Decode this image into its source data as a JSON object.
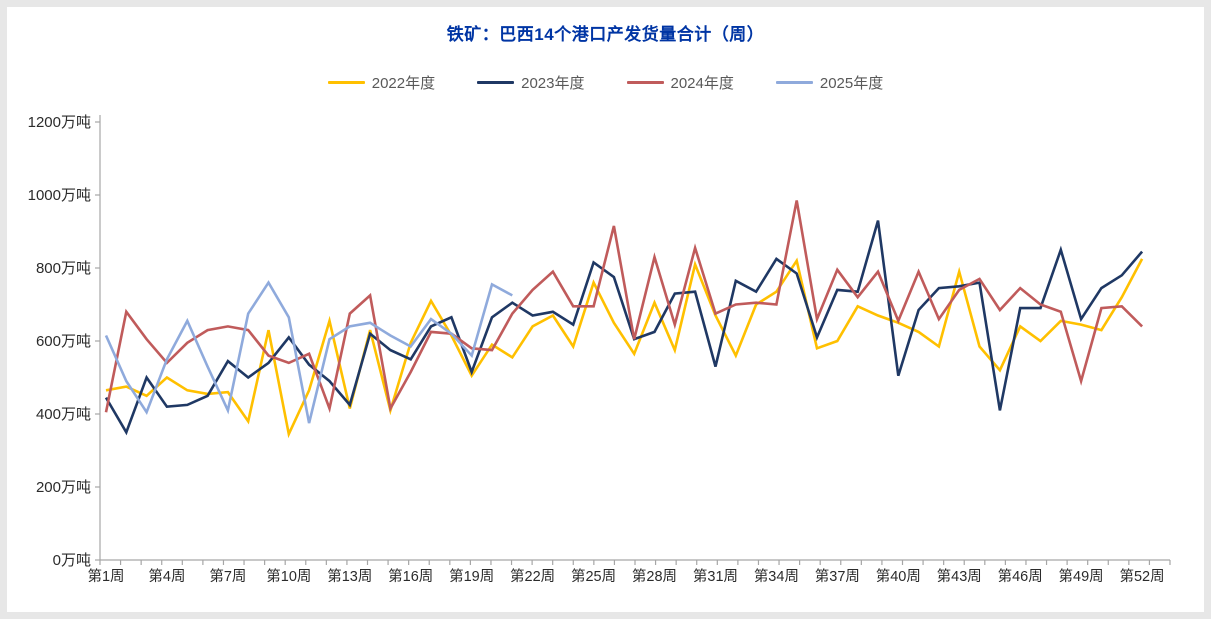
{
  "title": "铁矿：巴西14个港口产发货量合计（周）",
  "legend": [
    {
      "label": "2022年度",
      "color": "#FFC000"
    },
    {
      "label": "2023年度",
      "color": "#1F3864"
    },
    {
      "label": "2024年度",
      "color": "#C05B5B"
    },
    {
      "label": "2025年度",
      "color": "#8FAADC"
    }
  ],
  "axes": {
    "y_unit": "万吨",
    "y_tick_labels": [
      "0万吨",
      "200万吨",
      "400万吨",
      "600万吨",
      "800万吨",
      "1000万吨",
      "1200万吨"
    ],
    "y_tick_values": [
      0,
      200,
      400,
      600,
      800,
      1000,
      1200
    ],
    "x_tick_labels": [
      "第1周",
      "第4周",
      "第7周",
      "第10周",
      "第13周",
      "第16周",
      "第19周",
      "第22周",
      "第25周",
      "第28周",
      "第31周",
      "第34周",
      "第37周",
      "第40周",
      "第43周",
      "第46周",
      "第49周",
      "第52周"
    ],
    "x_label_weeks": [
      1,
      4,
      7,
      10,
      13,
      16,
      19,
      22,
      25,
      28,
      31,
      34,
      37,
      40,
      43,
      46,
      49,
      52
    ]
  },
  "chart_data": {
    "type": "line",
    "title": "铁矿：巴西14个港口产发货量合计（周）",
    "xlabel": "周",
    "ylabel": "万吨",
    "ylim": [
      0,
      1200
    ],
    "x_weeks": 52,
    "grid": false,
    "legend_position": "top",
    "series": [
      {
        "name": "2022年度",
        "color": "#FFC000",
        "values": [
          465,
          475,
          450,
          500,
          465,
          455,
          460,
          380,
          630,
          345,
          465,
          655,
          415,
          630,
          410,
          595,
          710,
          615,
          505,
          590,
          555,
          640,
          670,
          585,
          760,
          650,
          565,
          705,
          575,
          810,
          670,
          560,
          700,
          735,
          820,
          580,
          600,
          695,
          670,
          650,
          625,
          585,
          790,
          585,
          520,
          640,
          600,
          655,
          645,
          630,
          720,
          825
        ]
      },
      {
        "name": "2023年度",
        "color": "#1F3864",
        "values": [
          445,
          350,
          500,
          420,
          425,
          450,
          545,
          500,
          540,
          610,
          535,
          490,
          425,
          620,
          575,
          550,
          640,
          665,
          515,
          665,
          705,
          670,
          680,
          645,
          815,
          775,
          605,
          625,
          730,
          735,
          530,
          765,
          735,
          825,
          785,
          610,
          740,
          735,
          930,
          505,
          685,
          745,
          750,
          760,
          410,
          690,
          690,
          850,
          660,
          745,
          780,
          845
        ]
      },
      {
        "name": "2024年度",
        "color": "#C05B5B",
        "values": [
          405,
          680,
          605,
          540,
          595,
          630,
          640,
          630,
          560,
          540,
          565,
          415,
          675,
          725,
          415,
          515,
          625,
          620,
          580,
          575,
          675,
          740,
          790,
          695,
          695,
          915,
          605,
          830,
          645,
          855,
          675,
          700,
          705,
          700,
          985,
          660,
          795,
          720,
          790,
          655,
          790,
          660,
          740,
          770,
          685,
          745,
          700,
          680,
          490,
          690,
          695,
          640
        ]
      },
      {
        "name": "2025年度",
        "color": "#8FAADC",
        "values": [
          615,
          490,
          405,
          550,
          655,
          530,
          410,
          675,
          760,
          665,
          375,
          605,
          640,
          650,
          615,
          585,
          660,
          620,
          560,
          755,
          725
        ]
      }
    ]
  }
}
